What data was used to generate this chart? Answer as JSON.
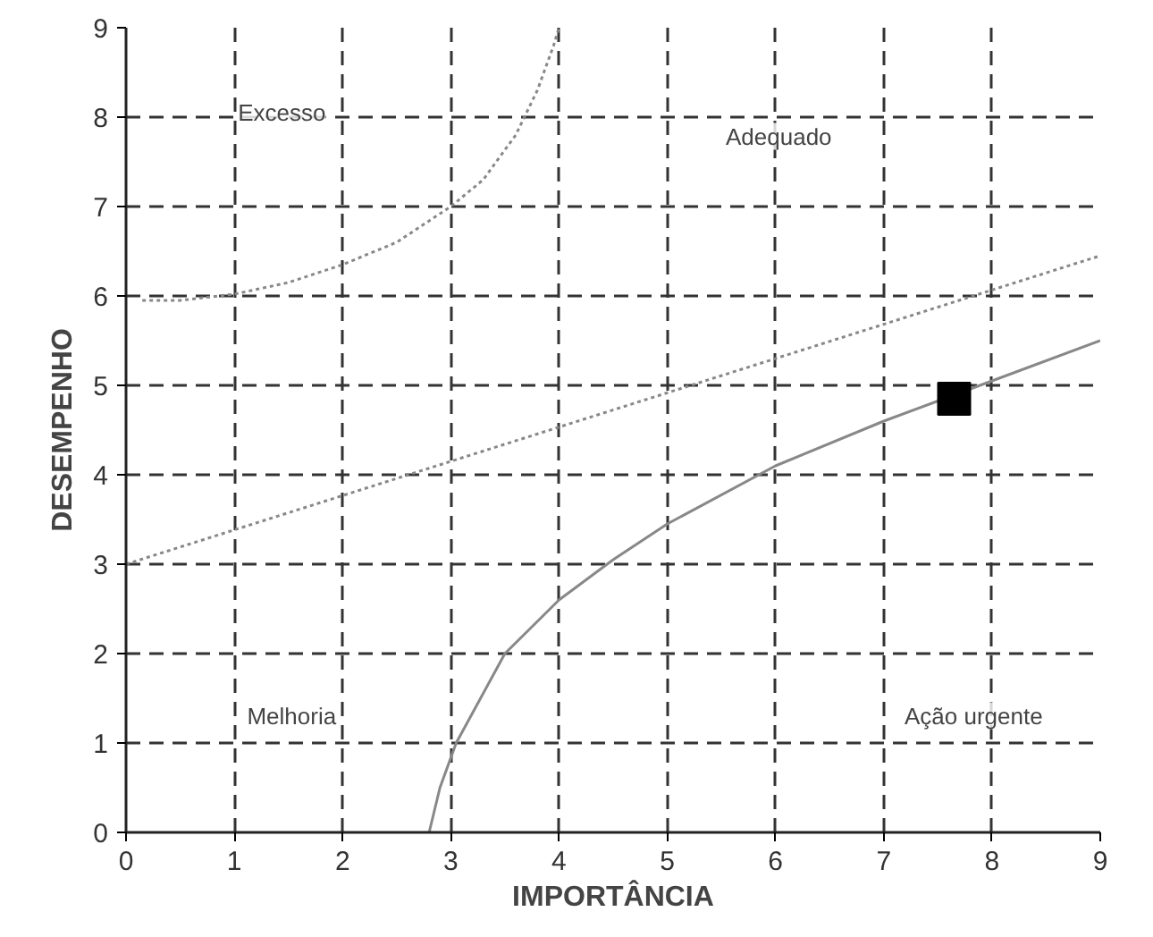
{
  "chart_data": {
    "type": "line",
    "xlabel": "IMPORTÂNCIA",
    "ylabel": "DESEMPENHO",
    "xlim": [
      0,
      9
    ],
    "ylim": [
      0,
      9
    ],
    "xticks": [
      0,
      1,
      2,
      3,
      4,
      5,
      6,
      7,
      8,
      9
    ],
    "yticks": [
      0,
      1,
      2,
      3,
      4,
      5,
      6,
      7,
      8,
      9
    ],
    "grid": true,
    "marker": "none",
    "series": [
      {
        "color": "#888888",
        "line_style": "dotted",
        "x": [
          0.15,
          0.5,
          1,
          1.5,
          2,
          2.5,
          3,
          3.3,
          3.6,
          3.8,
          3.95,
          4.0
        ],
        "values": [
          5.95,
          5.95,
          6.02,
          6.15,
          6.35,
          6.6,
          7.0,
          7.3,
          7.8,
          8.3,
          8.8,
          9.0
        ]
      },
      {
        "color": "#888888",
        "line_style": "dotted",
        "x": [
          0,
          9
        ],
        "values": [
          3,
          6.45
        ]
      },
      {
        "color": "#888888",
        "line_style": "solid",
        "x": [
          2.8,
          2.9,
          3.05,
          3.5,
          4,
          4.5,
          5,
          6,
          7,
          8,
          9
        ],
        "values": [
          0,
          0.5,
          1.0,
          2.0,
          2.6,
          3.05,
          3.45,
          4.1,
          4.6,
          5.05,
          5.5
        ]
      },
      {
        "type": "scatter",
        "marker": "square",
        "color": "#000000",
        "x": [
          7.65
        ],
        "values": [
          4.85
        ]
      }
    ],
    "annotations": [
      "Excesso",
      "Adequado",
      "Melhoria",
      "Ação urgente"
    ]
  }
}
